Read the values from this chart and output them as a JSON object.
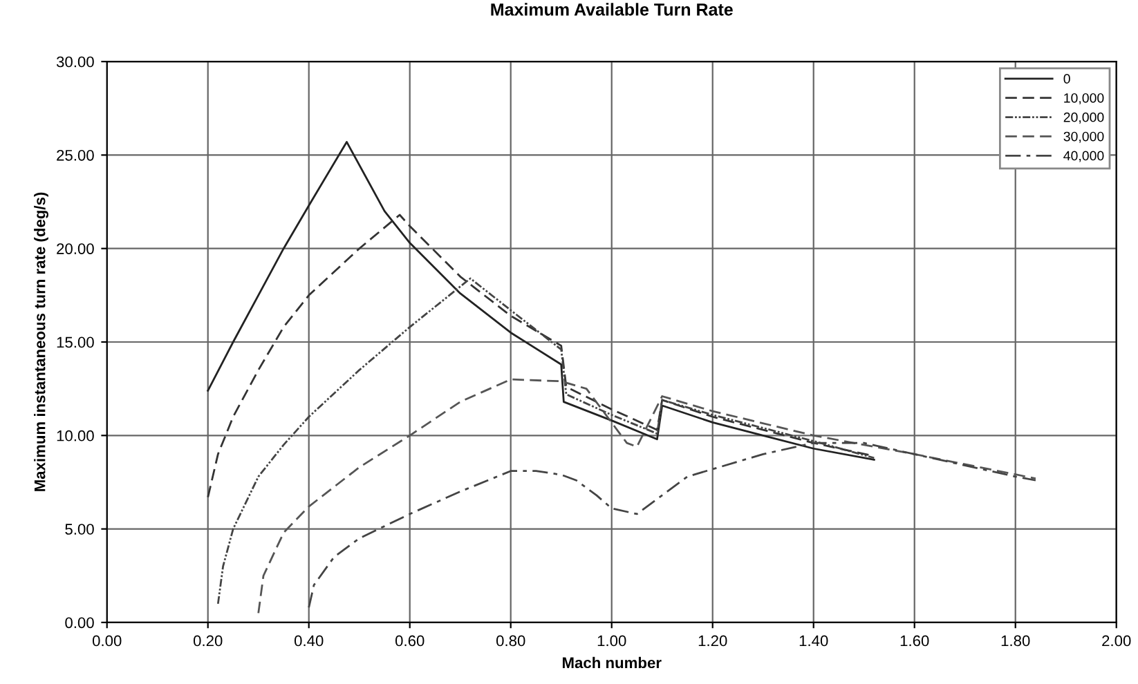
{
  "chart_data": {
    "type": "line",
    "title": "Maximum Available Turn Rate",
    "xlabel": "Mach number",
    "ylabel": "Maximum instantaneous turn rate (deg/s)",
    "xlim": [
      0,
      2
    ],
    "ylim": [
      0,
      30
    ],
    "xticks": [
      {
        "value": 0,
        "label": "0.00"
      },
      {
        "value": 0.2,
        "label": "0.20"
      },
      {
        "value": 0.4,
        "label": "0.40"
      },
      {
        "value": 0.6,
        "label": "0.60"
      },
      {
        "value": 0.8,
        "label": "0.80"
      },
      {
        "value": 1,
        "label": "1.00"
      },
      {
        "value": 1.2,
        "label": "1.20"
      },
      {
        "value": 1.4,
        "label": "1.40"
      },
      {
        "value": 1.6,
        "label": "1.60"
      },
      {
        "value": 1.8,
        "label": "1.80"
      },
      {
        "value": 2,
        "label": "2.00"
      }
    ],
    "yticks": [
      {
        "value": 0,
        "label": "0.00"
      },
      {
        "value": 5,
        "label": "5.00"
      },
      {
        "value": 10,
        "label": "10.00"
      },
      {
        "value": 15,
        "label": "15.00"
      },
      {
        "value": 20,
        "label": "20.00"
      },
      {
        "value": 25,
        "label": "25.00"
      },
      {
        "value": 30,
        "label": "30.00"
      }
    ],
    "grid": true,
    "legend": "top right",
    "series": [
      {
        "name": "0",
        "color": "#222222",
        "line_style": "solid",
        "x": [
          0.2,
          0.25,
          0.3,
          0.35,
          0.4,
          0.475,
          0.55,
          0.6,
          0.7,
          0.8,
          0.9,
          0.905,
          1.0,
          1.09,
          1.1,
          1.2,
          1.3,
          1.4,
          1.52
        ],
        "values": [
          12.4,
          15.0,
          17.5,
          20.0,
          22.3,
          25.7,
          22.0,
          20.3,
          17.6,
          15.5,
          13.8,
          11.8,
          10.8,
          9.8,
          11.6,
          10.7,
          10.0,
          9.3,
          8.7
        ]
      },
      {
        "name": "10,000",
        "color": "#333333",
        "line_style": "dashed",
        "x": [
          0.2,
          0.22,
          0.25,
          0.3,
          0.35,
          0.4,
          0.5,
          0.58,
          0.6,
          0.7,
          0.8,
          0.9,
          0.91,
          1.0,
          1.09,
          1.1,
          1.2,
          1.3,
          1.4,
          1.52
        ],
        "values": [
          6.7,
          9.0,
          11.0,
          13.5,
          15.8,
          17.5,
          20.0,
          21.8,
          21.2,
          18.5,
          16.4,
          14.8,
          12.6,
          11.4,
          10.3,
          11.9,
          11.0,
          10.3,
          9.6,
          8.9
        ]
      },
      {
        "name": "20,000",
        "color": "#444444",
        "line_style": "dotted",
        "x": [
          0.22,
          0.23,
          0.25,
          0.3,
          0.35,
          0.4,
          0.5,
          0.6,
          0.72,
          0.8,
          0.9,
          0.91,
          1.0,
          1.09,
          1.1,
          1.2,
          1.3,
          1.4,
          1.52
        ],
        "values": [
          1.0,
          3.0,
          5.0,
          7.8,
          9.5,
          11.0,
          13.5,
          15.8,
          18.4,
          16.7,
          14.6,
          12.2,
          11.1,
          10.1,
          11.9,
          11.1,
          10.4,
          9.7,
          8.8
        ]
      },
      {
        "name": "30,000",
        "color": "#555555",
        "line_style": "dashed",
        "x": [
          0.3,
          0.31,
          0.35,
          0.4,
          0.5,
          0.6,
          0.7,
          0.8,
          0.9,
          0.95,
          1.03,
          1.05,
          1.1,
          1.2,
          1.4,
          1.6,
          1.84
        ],
        "values": [
          0.5,
          2.5,
          4.8,
          6.2,
          8.3,
          10.0,
          11.8,
          13.0,
          12.9,
          12.5,
          9.6,
          9.4,
          12.1,
          11.3,
          10.0,
          9.0,
          7.7
        ]
      },
      {
        "name": "40,000",
        "color": "#444444",
        "line_style": "dashdot",
        "x": [
          0.4,
          0.41,
          0.45,
          0.5,
          0.6,
          0.7,
          0.8,
          0.85,
          0.9,
          0.93,
          0.97,
          1.0,
          1.05,
          1.1,
          1.15,
          1.2,
          1.3,
          1.4,
          1.5,
          1.6,
          1.7,
          1.8,
          1.84
        ],
        "values": [
          0.8,
          2.0,
          3.5,
          4.5,
          5.8,
          7.0,
          8.1,
          8.1,
          7.9,
          7.6,
          6.8,
          6.1,
          5.8,
          6.8,
          7.8,
          8.2,
          9.0,
          9.6,
          9.6,
          9.0,
          8.4,
          7.8,
          7.6
        ]
      }
    ]
  }
}
